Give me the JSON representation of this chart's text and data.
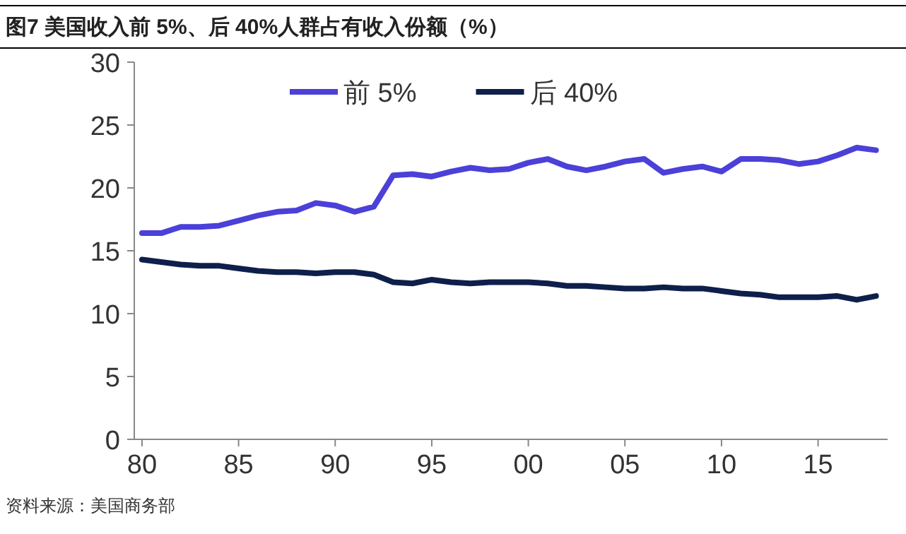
{
  "chart_data": {
    "type": "line",
    "title": "图7  美国收入前 5%、后 40%人群占有收入份额（%）",
    "annotations": [
      "资料来源：美国商务部"
    ],
    "x": [
      1980,
      1981,
      1982,
      1983,
      1984,
      1985,
      1986,
      1987,
      1988,
      1989,
      1990,
      1991,
      1992,
      1993,
      1994,
      1995,
      1996,
      1997,
      1998,
      1999,
      2000,
      2001,
      2002,
      2003,
      2004,
      2005,
      2006,
      2007,
      2008,
      2009,
      2010,
      2011,
      2012,
      2013,
      2014,
      2015,
      2016,
      2017,
      2018
    ],
    "series": [
      {
        "name": "前 5%",
        "color": "#4b40d8",
        "values": [
          16.4,
          16.4,
          16.9,
          16.9,
          17.0,
          17.4,
          17.8,
          18.1,
          18.2,
          18.8,
          18.6,
          18.1,
          18.5,
          21.0,
          21.1,
          20.9,
          21.3,
          21.6,
          21.4,
          21.5,
          22.0,
          22.3,
          21.7,
          21.4,
          21.7,
          22.1,
          22.3,
          21.2,
          21.5,
          21.7,
          21.3,
          22.3,
          22.3,
          22.2,
          21.9,
          22.1,
          22.6,
          23.2,
          23.0
        ]
      },
      {
        "name": "后 40%",
        "color": "#0e1f4b",
        "values": [
          14.3,
          14.1,
          13.9,
          13.8,
          13.8,
          13.6,
          13.4,
          13.3,
          13.3,
          13.2,
          13.3,
          13.3,
          13.1,
          12.5,
          12.4,
          12.7,
          12.5,
          12.4,
          12.5,
          12.5,
          12.5,
          12.4,
          12.2,
          12.2,
          12.1,
          12.0,
          12.0,
          12.1,
          12.0,
          12.0,
          11.8,
          11.6,
          11.5,
          11.3,
          11.3,
          11.3,
          11.4,
          11.1,
          11.4
        ]
      }
    ],
    "xlim": [
      1979.6,
      2018.6
    ],
    "xticks": [
      {
        "value": 1980,
        "label": "80"
      },
      {
        "value": 1985,
        "label": "85"
      },
      {
        "value": 1990,
        "label": "90"
      },
      {
        "value": 1995,
        "label": "95"
      },
      {
        "value": 2000,
        "label": "00"
      },
      {
        "value": 2005,
        "label": "05"
      },
      {
        "value": 2010,
        "label": "10"
      },
      {
        "value": 2015,
        "label": "15"
      }
    ],
    "ylim": [
      0,
      30
    ],
    "yticks": [
      0,
      5,
      10,
      15,
      20,
      25,
      30
    ],
    "legend": "top",
    "grid": false,
    "marker": "none",
    "line_style": "solid"
  }
}
